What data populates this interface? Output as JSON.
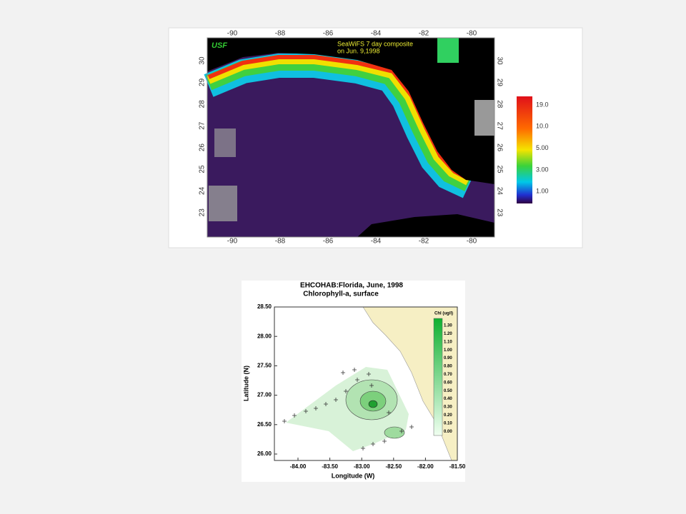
{
  "top_map": {
    "logo": "USF",
    "caption": [
      "SeaWiFS 7 day composite",
      "on Jun. 9,1998"
    ],
    "lon_ticks": [
      "-90",
      "-88",
      "-86",
      "-84",
      "-82",
      "-80"
    ],
    "lat_ticks": [
      "30",
      "29",
      "28",
      "27",
      "26",
      "25",
      "24",
      "23"
    ],
    "colorbar_labels": [
      "19.0",
      "10.0",
      "5.00",
      "3.00",
      "1.00"
    ]
  },
  "bottom_map": {
    "title": "EHCOHAB:Florida, June, 1998",
    "subtitle": "Chlorophyll-a, surface",
    "y_label": "Latitude (N)",
    "x_label": "Longitude (W)",
    "lat_ticks": [
      "28.50",
      "28.00",
      "27.50",
      "27.00",
      "26.50",
      "26.00"
    ],
    "lon_ticks": [
      "-84.00",
      "-83.50",
      "-83.00",
      "-82.50",
      "-82.00",
      "-81.50"
    ],
    "legend_title": "Chl (ug/l)",
    "legend_labels": [
      "1.30",
      "1.20",
      "1.10",
      "1.00",
      "0.90",
      "0.80",
      "0.70",
      "0.60",
      "0.50",
      "0.40",
      "0.30",
      "0.20",
      "0.10",
      "0.00"
    ]
  }
}
